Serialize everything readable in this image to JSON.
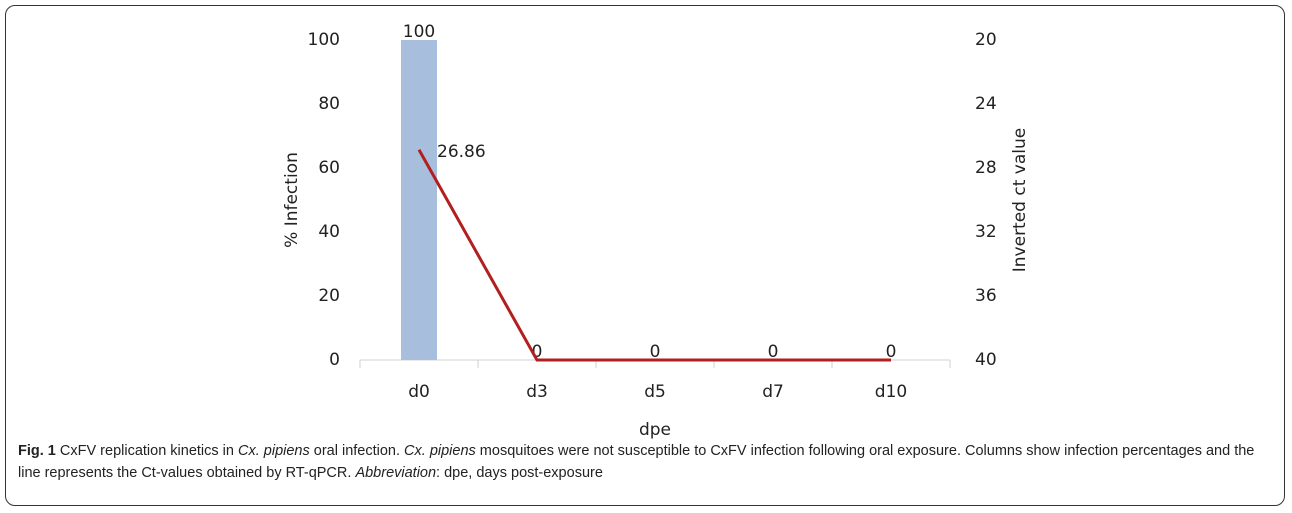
{
  "chart_data": {
    "type": "bar_line",
    "categories": [
      "d0",
      "d3",
      "d5",
      "d7",
      "d10"
    ],
    "xlabel": "dpe",
    "ylabel": "% Infection",
    "y2label": "Inverted ct value",
    "ylim": [
      0,
      100
    ],
    "yticks": [
      0,
      20,
      40,
      60,
      80,
      100
    ],
    "y2lim": [
      20,
      40
    ],
    "y2ticks": [
      20,
      24,
      28,
      32,
      36,
      40
    ],
    "y2_reverse": true,
    "series": [
      {
        "name": "% Infection",
        "type": "bar",
        "color": "#a7bfdd",
        "values": [
          100,
          0,
          0,
          0,
          0
        ]
      },
      {
        "name": "Inverted ct value",
        "type": "line",
        "axis": "y2",
        "color": "#b21f1f",
        "values": [
          26.86,
          40,
          40,
          40,
          40
        ],
        "value_labels": [
          "26.86",
          null,
          null,
          null,
          null
        ]
      }
    ]
  },
  "caption": {
    "label": "Fig. 1",
    "segments": [
      " CxFV replication kinetics in ",
      "Cx. pipiens",
      " oral infection. ",
      "Cx. pipiens",
      " mosquitoes were not susceptible to CxFV infection following oral exposure. Columns show infection percentages and the line represents the Ct-values obtained by RT-qPCR. ",
      "Abbreviation",
      ": dpe, days post-exposure"
    ]
  }
}
